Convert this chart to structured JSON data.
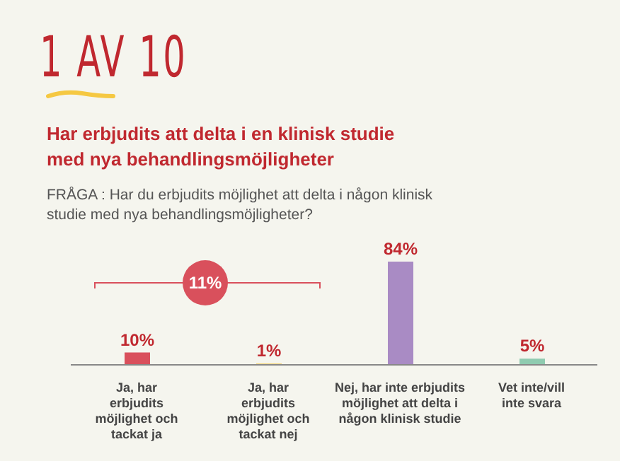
{
  "chart_data": {
    "type": "bar",
    "title": "1 AV 10",
    "subtitle": "Har erbjudits att delta i en klinisk studie med nya behandlingsmöjligheter",
    "annotations": [
      "FRÅGA : Har du erbjudits möjlighet att delta i någon klinisk studie med nya behandlingsmöjligheter?",
      "11%"
    ],
    "categories": [
      "Ja, har erbjudits möjlighet och tackat ja",
      "Ja, har erbjudits möjlighet och tackat nej",
      "Nej, har inte erbjudits möjlighet att delta i någon klinisk studie",
      "Vet inte/vill inte svara"
    ],
    "values": [
      10,
      1,
      84,
      5
    ],
    "colors": [
      "#d9505c",
      "#f2c94c",
      "#a98bc4",
      "#8fcbb0"
    ],
    "value_labels": [
      "10%",
      "1%",
      "84%",
      "5%"
    ]
  }
}
